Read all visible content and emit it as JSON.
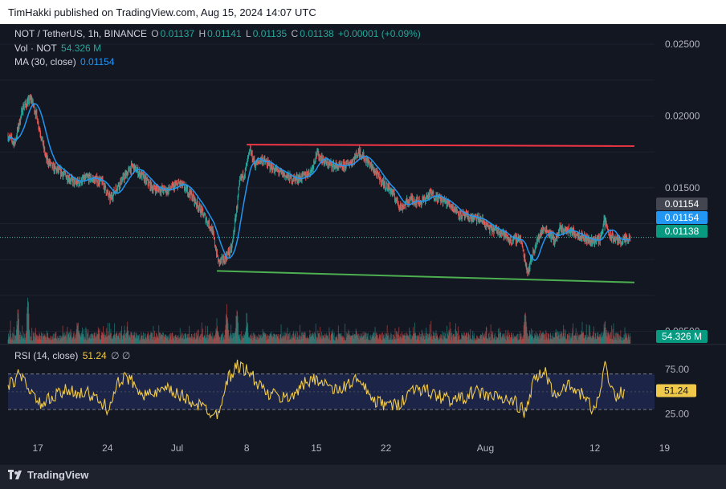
{
  "header": {
    "published": "TimHakki published on TradingView.com, Aug 15, 2024 14:07 UTC"
  },
  "legend": {
    "symbol": "NOT / TetherUS, 1h, BINANCE",
    "o_label": "O",
    "o_value": "0.01137",
    "h_label": "H",
    "h_value": "0.01141",
    "l_label": "L",
    "l_value": "0.01135",
    "c_label": "C",
    "c_value": "0.01138",
    "change": "+0.00001 (+0.09%)",
    "vol_label": "Vol · NOT",
    "vol_value": "54.326 M",
    "ma_label": "MA (30, close)",
    "ma_value": "0.01154",
    "rsi_label": "RSI (14, close)",
    "rsi_value": "51.24",
    "rsi_extra": "∅ ∅"
  },
  "footer": {
    "brand": "TradingView"
  },
  "colors": {
    "background": "#131722",
    "grid": "#1e2230",
    "up": "#26a69a",
    "down": "#ef5350",
    "ma": "#2196f3",
    "resistance": "#f23645",
    "support": "#4caf50",
    "rsi": "#f0c94a",
    "rsi_band": "#1c2547",
    "axis_text": "#b2b5be"
  },
  "chart_data": {
    "type": "candlestick",
    "symbol": "NOT / TetherUS",
    "interval": "1h",
    "exchange": "BINANCE",
    "price_axis": {
      "ticks": [
        "0.02500",
        "0.02000",
        "0.01500",
        "0.00500"
      ],
      "ylim": [
        0.0043,
        0.0264
      ]
    },
    "x_axis": {
      "ticks": [
        "17",
        "24",
        "Jul",
        "8",
        "15",
        "22",
        "Aug",
        "12",
        "19"
      ],
      "start": "2024-06-14",
      "end": "2024-08-18"
    },
    "price_path": [
      [
        "2024-06-14T00:00",
        0.0186
      ],
      [
        "2024-06-14T16:00",
        0.0181
      ],
      [
        "2024-06-15T12:00",
        0.0206
      ],
      [
        "2024-06-16T08:00",
        0.0212
      ],
      [
        "2024-06-16T20:00",
        0.0201
      ],
      [
        "2024-06-17T08:00",
        0.0186
      ],
      [
        "2024-06-17T20:00",
        0.017
      ],
      [
        "2024-06-18T12:00",
        0.0164
      ],
      [
        "2024-06-19T12:00",
        0.016
      ],
      [
        "2024-06-20T20:00",
        0.0153
      ],
      [
        "2024-06-22T00:00",
        0.0157
      ],
      [
        "2024-06-23T12:00",
        0.0154
      ],
      [
        "2024-06-24T06:00",
        0.0142
      ],
      [
        "2024-06-25T00:00",
        0.0151
      ],
      [
        "2024-06-26T12:00",
        0.0165
      ],
      [
        "2024-06-27T12:00",
        0.0158
      ],
      [
        "2024-06-28T12:00",
        0.015
      ],
      [
        "2024-06-30T00:00",
        0.0148
      ],
      [
        "2024-07-01T06:00",
        0.0153
      ],
      [
        "2024-07-02T08:00",
        0.0146
      ],
      [
        "2024-07-03T12:00",
        0.0133
      ],
      [
        "2024-07-04T12:00",
        0.0121
      ],
      [
        "2024-07-05T04:00",
        0.0098
      ],
      [
        "2024-07-05T18:00",
        0.01
      ],
      [
        "2024-07-06T12:00",
        0.0108
      ],
      [
        "2024-07-07T08:00",
        0.0155
      ],
      [
        "2024-07-07T20:00",
        0.0161
      ],
      [
        "2024-07-08T08:00",
        0.0176
      ],
      [
        "2024-07-08T20:00",
        0.0166
      ],
      [
        "2024-07-09T12:00",
        0.017
      ],
      [
        "2024-07-10T12:00",
        0.0164
      ],
      [
        "2024-07-11T12:00",
        0.016
      ],
      [
        "2024-07-12T12:00",
        0.0156
      ],
      [
        "2024-07-13T12:00",
        0.0157
      ],
      [
        "2024-07-14T12:00",
        0.0162
      ],
      [
        "2024-07-15T00:00",
        0.0174
      ],
      [
        "2024-07-16T00:00",
        0.0167
      ],
      [
        "2024-07-17T12:00",
        0.0164
      ],
      [
        "2024-07-18T12:00",
        0.0168
      ],
      [
        "2024-07-19T08:00",
        0.0175
      ],
      [
        "2024-07-20T12:00",
        0.0165
      ],
      [
        "2024-07-21T12:00",
        0.0155
      ],
      [
        "2024-07-22T12:00",
        0.0148
      ],
      [
        "2024-07-23T12:00",
        0.0136
      ],
      [
        "2024-07-24T12:00",
        0.0142
      ],
      [
        "2024-07-25T12:00",
        0.014
      ],
      [
        "2024-07-26T12:00",
        0.0146
      ],
      [
        "2024-07-27T12:00",
        0.0142
      ],
      [
        "2024-07-28T12:00",
        0.0138
      ],
      [
        "2024-07-29T12:00",
        0.0131
      ],
      [
        "2024-07-30T12:00",
        0.0129
      ],
      [
        "2024-07-31T12:00",
        0.0128
      ],
      [
        "2024-08-01T12:00",
        0.0121
      ],
      [
        "2024-08-02T12:00",
        0.012
      ],
      [
        "2024-08-03T12:00",
        0.0113
      ],
      [
        "2024-08-04T12:00",
        0.0115
      ],
      [
        "2024-08-05T06:00",
        0.0091
      ],
      [
        "2024-08-05T18:00",
        0.0104
      ],
      [
        "2024-08-06T12:00",
        0.0118
      ],
      [
        "2024-08-07T00:00",
        0.0122
      ],
      [
        "2024-08-08T00:00",
        0.0113
      ],
      [
        "2024-08-08T12:00",
        0.0121
      ],
      [
        "2024-08-09T12:00",
        0.012
      ],
      [
        "2024-08-10T12:00",
        0.0117
      ],
      [
        "2024-08-11T12:00",
        0.0113
      ],
      [
        "2024-08-12T12:00",
        0.0114
      ],
      [
        "2024-08-13T00:00",
        0.0128
      ],
      [
        "2024-08-13T12:00",
        0.0116
      ],
      [
        "2024-08-14T12:00",
        0.0113
      ],
      [
        "2024-08-15T14:00",
        0.01138
      ]
    ],
    "last_close": 0.01138,
    "ma": {
      "period": 30,
      "source": "close",
      "last": 0.01154
    },
    "lines": {
      "resistance": {
        "from": [
          "2024-07-08",
          0.018
        ],
        "to": [
          "2024-08-18",
          0.0179
        ]
      },
      "support": {
        "from": [
          "2024-07-05",
          0.0092
        ],
        "to": [
          "2024-08-18",
          0.0084
        ]
      }
    },
    "volume": {
      "last": "54.326 M",
      "spikes": [
        [
          "2024-06-15",
          0.75
        ],
        [
          "2024-06-16",
          0.95
        ],
        [
          "2024-06-21",
          0.55
        ],
        [
          "2024-06-26",
          0.4
        ],
        [
          "2024-07-05",
          0.45
        ],
        [
          "2024-07-06",
          0.78
        ],
        [
          "2024-07-07",
          0.82
        ],
        [
          "2024-07-08",
          0.62
        ],
        [
          "2024-07-19",
          0.3
        ],
        [
          "2024-08-05",
          0.8
        ],
        [
          "2024-08-13",
          0.55
        ]
      ]
    },
    "price_labels": [
      "0.01154",
      "0.01154",
      "0.01138"
    ],
    "rsi": {
      "period": 14,
      "source": "close",
      "last": 51.24,
      "levels": [
        70,
        30
      ],
      "ticks": [
        "75.00",
        "25.00"
      ],
      "path": [
        [
          "2024-06-14",
          55
        ],
        [
          "2024-06-15",
          68
        ],
        [
          "2024-06-16",
          58
        ],
        [
          "2024-06-17",
          35
        ],
        [
          "2024-06-18",
          40
        ],
        [
          "2024-06-20",
          52
        ],
        [
          "2024-06-22",
          48
        ],
        [
          "2024-06-24",
          32
        ],
        [
          "2024-06-25",
          58
        ],
        [
          "2024-06-26",
          66
        ],
        [
          "2024-06-28",
          45
        ],
        [
          "2024-06-30",
          52
        ],
        [
          "2024-07-02",
          42
        ],
        [
          "2024-07-04",
          30
        ],
        [
          "2024-07-05",
          24
        ],
        [
          "2024-07-06",
          62
        ],
        [
          "2024-07-07",
          80
        ],
        [
          "2024-07-08",
          74
        ],
        [
          "2024-07-10",
          48
        ],
        [
          "2024-07-12",
          42
        ],
        [
          "2024-07-14",
          60
        ],
        [
          "2024-07-15",
          66
        ],
        [
          "2024-07-17",
          50
        ],
        [
          "2024-07-19",
          64
        ],
        [
          "2024-07-21",
          38
        ],
        [
          "2024-07-23",
          34
        ],
        [
          "2024-07-25",
          56
        ],
        [
          "2024-07-27",
          46
        ],
        [
          "2024-07-29",
          40
        ],
        [
          "2024-07-31",
          50
        ],
        [
          "2024-08-02",
          44
        ],
        [
          "2024-08-04",
          38
        ],
        [
          "2024-08-05",
          26
        ],
        [
          "2024-08-06",
          66
        ],
        [
          "2024-08-07",
          72
        ],
        [
          "2024-08-08",
          44
        ],
        [
          "2024-08-09",
          58
        ],
        [
          "2024-08-11",
          44
        ],
        [
          "2024-08-12",
          26
        ],
        [
          "2024-08-13",
          80
        ],
        [
          "2024-08-14",
          46
        ],
        [
          "2024-08-15",
          51.24
        ]
      ]
    }
  }
}
